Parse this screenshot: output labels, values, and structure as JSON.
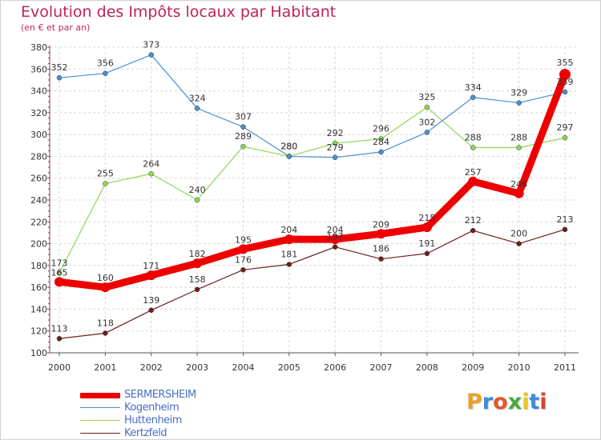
{
  "title": "Evolution des Impôts locaux par Habitant",
  "subtitle": "(en € et par an)",
  "logo": {
    "text": "Proxiti",
    "letters": [
      "P",
      "r",
      "o",
      "x",
      "i",
      "t",
      "i"
    ],
    "colors": [
      "#e8a12a",
      "#3d8bd6",
      "#e0582a",
      "#4aa83a",
      "#e8c62a",
      "#3d8bd6",
      "#d6462a"
    ]
  },
  "chart_data": {
    "type": "line",
    "x": [
      "2000",
      "2001",
      "2002",
      "2003",
      "2004",
      "2005",
      "2006",
      "2007",
      "2008",
      "2009",
      "2010",
      "2011"
    ],
    "ylim": [
      100,
      380
    ],
    "yticks": [
      "100",
      "120",
      "140",
      "160",
      "180",
      "200",
      "220",
      "240",
      "260",
      "280",
      "300",
      "320",
      "340",
      "360",
      "380"
    ],
    "grid": true,
    "legend_position": "bottom-left",
    "series": [
      {
        "name": "SERMERSHEIM",
        "color": "#ee0000",
        "values": [
          165,
          160,
          171,
          182,
          195,
          204,
          204,
          209,
          215,
          257,
          246,
          355
        ],
        "labels": [
          "165",
          "160",
          "171",
          "182",
          "195",
          "204",
          "204",
          "209",
          "215",
          "257",
          "246",
          "355"
        ]
      },
      {
        "name": "Kogenheim",
        "color": "#4a90d0",
        "values": [
          352,
          356,
          373,
          324,
          307,
          280,
          279,
          284,
          302,
          334,
          329,
          339
        ],
        "labels": [
          "352",
          "356",
          "373",
          "324",
          "307",
          "280",
          "279",
          "284",
          "302",
          "334",
          "329",
          "339"
        ]
      },
      {
        "name": "Huttenheim",
        "color": "#8fd658",
        "values": [
          173,
          255,
          264,
          240,
          289,
          280,
          292,
          296,
          325,
          288,
          288,
          297
        ],
        "labels": [
          "173",
          "255",
          "264",
          "240",
          "289",
          "280",
          "292",
          "296",
          "325",
          "288",
          "288",
          "297"
        ]
      },
      {
        "name": "Kertzfeld",
        "color": "#6b1e1e",
        "values": [
          113,
          118,
          139,
          158,
          176,
          181,
          197,
          186,
          191,
          212,
          200,
          213
        ],
        "labels": [
          "113",
          "118",
          "139",
          "158",
          "176",
          "181",
          "197",
          "186",
          "191",
          "212",
          "200",
          "213"
        ]
      }
    ]
  }
}
